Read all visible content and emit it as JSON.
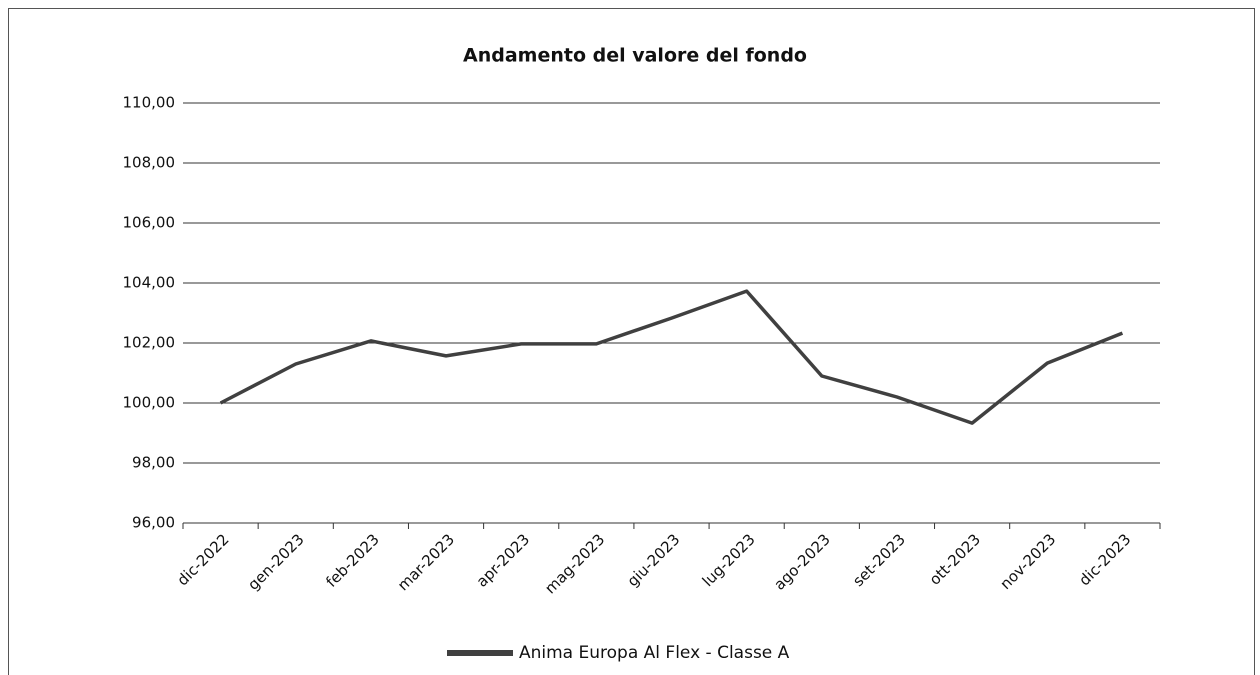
{
  "chart_data": {
    "type": "line",
    "title": "Andamento del valore del fondo",
    "categories": [
      "dic-2022",
      "gen-2023",
      "feb-2023",
      "mar-2023",
      "apr-2023",
      "mag-2023",
      "giu-2023",
      "lug-2023",
      "ago-2023",
      "set-2023",
      "ott-2023",
      "nov-2023",
      "dic-2023"
    ],
    "series": [
      {
        "name": "Anima Europa Al Flex - Classe A",
        "color": "#404040",
        "values": [
          100.0,
          101.3,
          102.07,
          101.57,
          101.97,
          101.97,
          102.83,
          103.73,
          100.9,
          100.2,
          99.33,
          101.33,
          102.33
        ]
      }
    ],
    "ylim": [
      96,
      110
    ],
    "yticks": [
      {
        "value": 96,
        "label": "96,00"
      },
      {
        "value": 98,
        "label": "98,00"
      },
      {
        "value": 100,
        "label": "100,00"
      },
      {
        "value": 102,
        "label": "102,00"
      },
      {
        "value": 104,
        "label": "104,00"
      },
      {
        "value": 106,
        "label": "106,00"
      },
      {
        "value": 108,
        "label": "108,00"
      },
      {
        "value": 110,
        "label": "110,00"
      }
    ],
    "grid": true,
    "legend": "bottom"
  }
}
